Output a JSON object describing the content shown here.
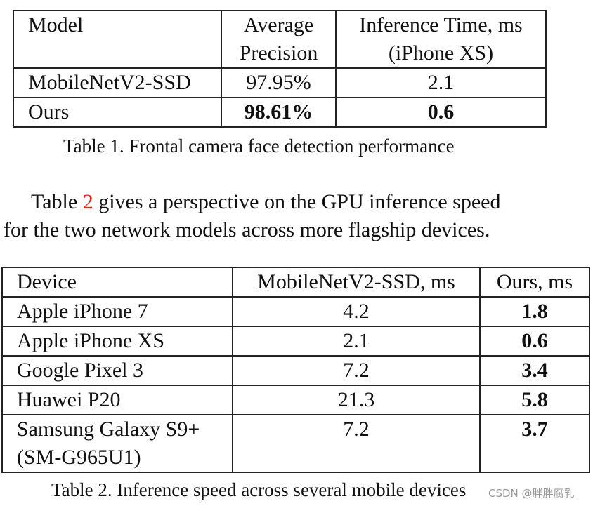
{
  "table1": {
    "headers": [
      "Model",
      "Average\nPrecision",
      "Inference Time, ms\n(iPhone XS)"
    ],
    "header_lines": [
      [
        "Model"
      ],
      [
        "Average",
        "Precision"
      ],
      [
        "Inference Time, ms",
        "(iPhone XS)"
      ]
    ],
    "rows": [
      {
        "model": "MobileNetV2-SSD",
        "precision": "97.95%",
        "time": "2.1"
      },
      {
        "model": "Ours",
        "precision": "98.61%",
        "time": "0.6"
      }
    ],
    "caption": "Table 1. Frontal camera face detection performance"
  },
  "paragraph": {
    "line1_before": "Table ",
    "line1_ref": "2",
    "line1_after": " gives a perspective on the GPU inference speed",
    "line2": "for the two network models across more flagship devices."
  },
  "table2": {
    "headers": [
      "Device",
      "MobileNetV2-SSD, ms",
      "Ours, ms"
    ],
    "rows": [
      {
        "device": "Apple iPhone 7",
        "device_line2": "",
        "ssd": "4.2",
        "ours": "1.8"
      },
      {
        "device": "Apple iPhone XS",
        "device_line2": "",
        "ssd": "2.1",
        "ours": "0.6"
      },
      {
        "device": "Google Pixel 3",
        "device_line2": "",
        "ssd": "7.2",
        "ours": "3.4"
      },
      {
        "device": "Huawei P20",
        "device_line2": "",
        "ssd": "21.3",
        "ours": "5.8"
      },
      {
        "device": "Samsung Galaxy S9+",
        "device_line2": "(SM-G965U1)",
        "ssd": "7.2",
        "ours": "3.7"
      }
    ],
    "caption": "Table 2. Inference speed across several mobile devices"
  },
  "watermark": "CSDN @胖胖腐乳"
}
